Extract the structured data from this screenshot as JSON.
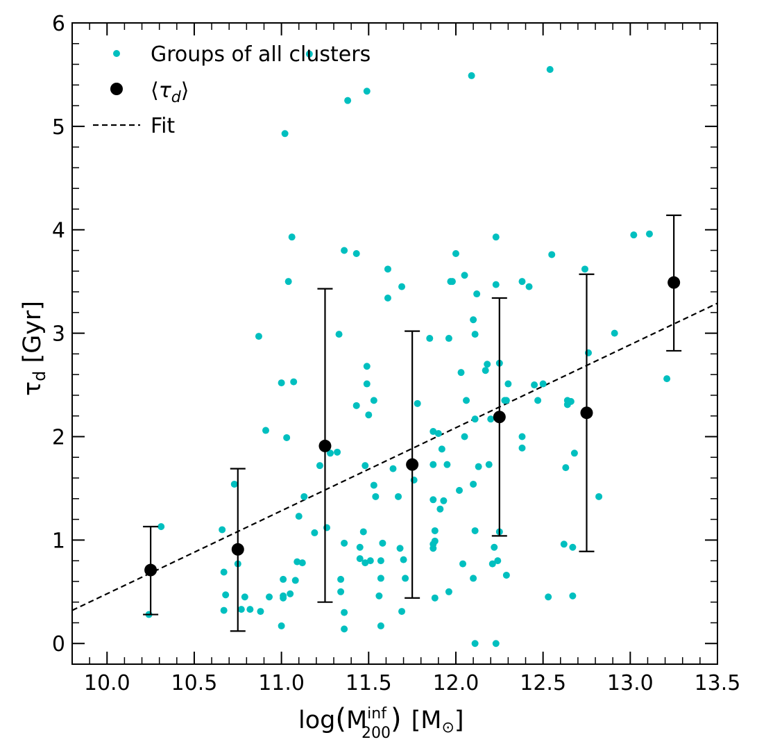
{
  "chart_data": {
    "type": "scatter",
    "xlabel_parts": {
      "main": "log",
      "lparen": "(",
      "M": "M",
      "sup": "inf",
      "sub": "200",
      "rparen": ")",
      "unit": "[M",
      "sun": "⊙",
      "close": "]"
    },
    "ylabel_parts": {
      "main": "τ",
      "sub": "d",
      "unit": " [Gyr]"
    },
    "xlim": [
      9.8,
      13.5
    ],
    "ylim": [
      -0.2,
      6.0
    ],
    "xticks": [
      "10.0",
      "10.5",
      "11.0",
      "11.5",
      "12.0",
      "12.5",
      "13.0",
      "13.5"
    ],
    "yticks": [
      "0",
      "1",
      "2",
      "3",
      "4",
      "5",
      "6"
    ],
    "legend": {
      "position": "top-left",
      "entries": [
        {
          "label": "Groups of all clusters",
          "marker": "small-dot",
          "color": "#00bfbf"
        },
        {
          "label_parts": {
            "open": "⟨",
            "tau": "τ",
            "sub": "d",
            "close": "⟩"
          },
          "marker": "large-dot",
          "color": "#000000"
        },
        {
          "label": "Fit",
          "marker": "dashed-line",
          "color": "#000000"
        }
      ]
    },
    "series": [
      {
        "name": "Groups of all clusters",
        "color": "#00bfbf",
        "points": [
          [
            10.24,
            0.28
          ],
          [
            10.31,
            1.13
          ],
          [
            10.66,
            1.1
          ],
          [
            10.67,
            0.69
          ],
          [
            10.68,
            0.47
          ],
          [
            10.67,
            0.32
          ],
          [
            10.73,
            1.54
          ],
          [
            10.75,
            0.77
          ],
          [
            10.77,
            0.33
          ],
          [
            10.79,
            0.45
          ],
          [
            10.82,
            0.33
          ],
          [
            10.87,
            2.97
          ],
          [
            10.88,
            0.31
          ],
          [
            10.91,
            2.06
          ],
          [
            10.93,
            0.45
          ],
          [
            11.0,
            2.52
          ],
          [
            11.0,
            0.17
          ],
          [
            11.01,
            0.62
          ],
          [
            11.01,
            0.44
          ],
          [
            11.01,
            0.46
          ],
          [
            11.02,
            4.93
          ],
          [
            11.03,
            1.99
          ],
          [
            11.04,
            3.5
          ],
          [
            11.05,
            0.48
          ],
          [
            11.06,
            3.93
          ],
          [
            11.07,
            2.53
          ],
          [
            11.08,
            0.61
          ],
          [
            11.09,
            0.79
          ],
          [
            11.1,
            1.23
          ],
          [
            11.12,
            0.78
          ],
          [
            11.13,
            1.42
          ],
          [
            11.16,
            5.7
          ],
          [
            11.19,
            1.07
          ],
          [
            11.22,
            1.72
          ],
          [
            11.26,
            1.12
          ],
          [
            11.28,
            1.84
          ],
          [
            11.32,
            1.85
          ],
          [
            11.33,
            2.99
          ],
          [
            11.34,
            0.62
          ],
          [
            11.34,
            0.5
          ],
          [
            11.36,
            3.8
          ],
          [
            11.36,
            0.97
          ],
          [
            11.36,
            0.3
          ],
          [
            11.36,
            0.14
          ],
          [
            11.38,
            5.25
          ],
          [
            11.43,
            3.77
          ],
          [
            11.43,
            2.3
          ],
          [
            11.45,
            0.93
          ],
          [
            11.45,
            0.82
          ],
          [
            11.47,
            1.08
          ],
          [
            11.48,
            0.78
          ],
          [
            11.48,
            1.72
          ],
          [
            11.49,
            5.34
          ],
          [
            11.49,
            2.68
          ],
          [
            11.49,
            2.51
          ],
          [
            11.5,
            2.21
          ],
          [
            11.51,
            0.8
          ],
          [
            11.53,
            2.35
          ],
          [
            11.53,
            1.53
          ],
          [
            11.54,
            1.42
          ],
          [
            11.56,
            0.46
          ],
          [
            11.57,
            0.17
          ],
          [
            11.57,
            0.63
          ],
          [
            11.57,
            0.8
          ],
          [
            11.58,
            0.97
          ],
          [
            11.61,
            3.62
          ],
          [
            11.61,
            3.34
          ],
          [
            11.64,
            1.69
          ],
          [
            11.67,
            1.42
          ],
          [
            11.68,
            0.92
          ],
          [
            11.69,
            3.45
          ],
          [
            11.69,
            0.31
          ],
          [
            11.7,
            0.81
          ],
          [
            11.71,
            0.63
          ],
          [
            11.76,
            1.58
          ],
          [
            11.78,
            2.32
          ],
          [
            11.85,
            2.95
          ],
          [
            11.87,
            2.05
          ],
          [
            11.87,
            1.73
          ],
          [
            11.87,
            1.39
          ],
          [
            11.87,
            0.96
          ],
          [
            11.87,
            0.92
          ],
          [
            11.88,
            0.44
          ],
          [
            11.88,
            1.09
          ],
          [
            11.88,
            0.99
          ],
          [
            11.9,
            2.03
          ],
          [
            11.91,
            1.3
          ],
          [
            11.92,
            1.88
          ],
          [
            11.93,
            1.38
          ],
          [
            11.95,
            1.73
          ],
          [
            11.96,
            0.5
          ],
          [
            11.96,
            2.95
          ],
          [
            11.97,
            3.5
          ],
          [
            11.98,
            3.5
          ],
          [
            12.0,
            3.77
          ],
          [
            12.02,
            1.48
          ],
          [
            12.03,
            2.62
          ],
          [
            12.04,
            0.77
          ],
          [
            12.05,
            2.0
          ],
          [
            12.05,
            3.56
          ],
          [
            12.06,
            2.35
          ],
          [
            12.09,
            5.49
          ],
          [
            12.1,
            3.13
          ],
          [
            12.1,
            1.54
          ],
          [
            12.1,
            0.63
          ],
          [
            12.11,
            2.99
          ],
          [
            12.11,
            2.17
          ],
          [
            12.11,
            1.09
          ],
          [
            12.11,
            0.0
          ],
          [
            12.12,
            3.38
          ],
          [
            12.13,
            1.71
          ],
          [
            12.17,
            2.64
          ],
          [
            12.18,
            2.7
          ],
          [
            12.19,
            1.73
          ],
          [
            12.2,
            2.17
          ],
          [
            12.21,
            0.77
          ],
          [
            12.22,
            0.93
          ],
          [
            12.23,
            3.93
          ],
          [
            12.23,
            3.47
          ],
          [
            12.24,
            0.8
          ],
          [
            12.25,
            2.71
          ],
          [
            12.25,
            1.08
          ],
          [
            12.23,
            0.0
          ],
          [
            12.28,
            2.35
          ],
          [
            12.29,
            2.35
          ],
          [
            12.29,
            0.66
          ],
          [
            12.3,
            2.51
          ],
          [
            12.38,
            3.5
          ],
          [
            12.38,
            2.0
          ],
          [
            12.38,
            1.89
          ],
          [
            12.42,
            3.45
          ],
          [
            12.45,
            2.5
          ],
          [
            12.47,
            2.35
          ],
          [
            12.5,
            2.51
          ],
          [
            12.53,
            0.45
          ],
          [
            12.54,
            5.55
          ],
          [
            12.55,
            3.76
          ],
          [
            12.62,
            0.96
          ],
          [
            12.63,
            1.7
          ],
          [
            12.64,
            2.31
          ],
          [
            12.64,
            2.35
          ],
          [
            12.66,
            2.34
          ],
          [
            12.67,
            0.93
          ],
          [
            12.67,
            0.46
          ],
          [
            12.68,
            1.84
          ],
          [
            12.74,
            3.62
          ],
          [
            12.76,
            2.81
          ],
          [
            12.82,
            1.42
          ],
          [
            12.91,
            3.0
          ],
          [
            13.02,
            3.95
          ],
          [
            13.11,
            3.96
          ],
          [
            13.21,
            2.56
          ]
        ]
      },
      {
        "name": "⟨τd⟩",
        "color": "#000000",
        "points": [
          {
            "x": 10.25,
            "y": 0.71,
            "lo": 0.28,
            "hi": 1.13
          },
          {
            "x": 10.75,
            "y": 0.91,
            "lo": 0.12,
            "hi": 1.69
          },
          {
            "x": 11.25,
            "y": 1.91,
            "lo": 0.4,
            "hi": 3.43
          },
          {
            "x": 11.75,
            "y": 1.73,
            "lo": 0.44,
            "hi": 3.02
          },
          {
            "x": 12.25,
            "y": 2.19,
            "lo": 1.04,
            "hi": 3.34
          },
          {
            "x": 12.75,
            "y": 2.23,
            "lo": 0.89,
            "hi": 3.57
          },
          {
            "x": 13.25,
            "y": 3.49,
            "lo": 2.83,
            "hi": 4.14
          }
        ]
      },
      {
        "name": "Fit",
        "color": "#000000",
        "line": [
          [
            9.8,
            0.32
          ],
          [
            13.5,
            3.29
          ]
        ]
      }
    ]
  }
}
